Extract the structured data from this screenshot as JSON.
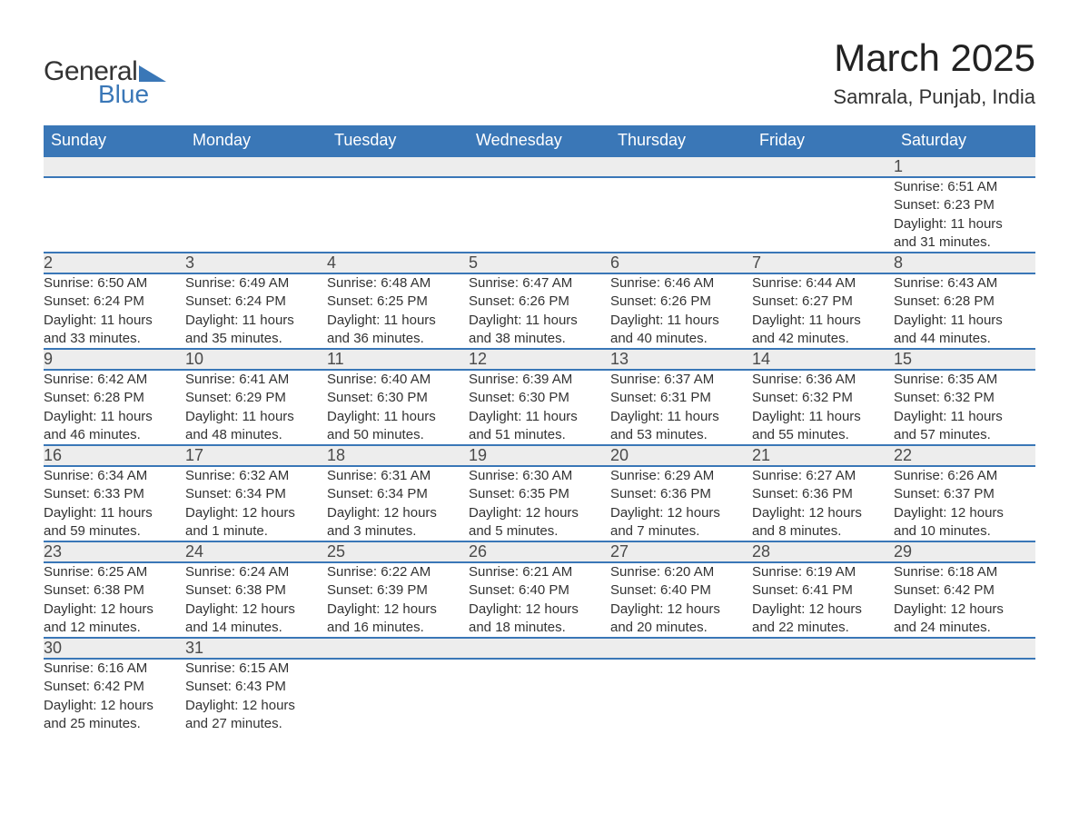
{
  "logo": {
    "general": "General",
    "blue": "Blue",
    "triangle_color": "#3a77b7"
  },
  "title": "March 2025",
  "location": "Samrala, Punjab, India",
  "colors": {
    "header_bg": "#3a77b7",
    "header_text": "#ffffff",
    "daynum_bg": "#ededed",
    "row_border": "#3a77b7",
    "body_text": "#333333",
    "page_bg": "#ffffff"
  },
  "typography": {
    "title_fontsize": 42,
    "location_fontsize": 22,
    "dayheader_fontsize": 18,
    "daynum_fontsize": 18,
    "detail_fontsize": 15,
    "font_family": "Arial"
  },
  "day_headers": [
    "Sunday",
    "Monday",
    "Tuesday",
    "Wednesday",
    "Thursday",
    "Friday",
    "Saturday"
  ],
  "weeks": [
    [
      null,
      null,
      null,
      null,
      null,
      null,
      {
        "n": "1",
        "sunrise": "Sunrise: 6:51 AM",
        "sunset": "Sunset: 6:23 PM",
        "day1": "Daylight: 11 hours",
        "day2": "and 31 minutes."
      }
    ],
    [
      {
        "n": "2",
        "sunrise": "Sunrise: 6:50 AM",
        "sunset": "Sunset: 6:24 PM",
        "day1": "Daylight: 11 hours",
        "day2": "and 33 minutes."
      },
      {
        "n": "3",
        "sunrise": "Sunrise: 6:49 AM",
        "sunset": "Sunset: 6:24 PM",
        "day1": "Daylight: 11 hours",
        "day2": "and 35 minutes."
      },
      {
        "n": "4",
        "sunrise": "Sunrise: 6:48 AM",
        "sunset": "Sunset: 6:25 PM",
        "day1": "Daylight: 11 hours",
        "day2": "and 36 minutes."
      },
      {
        "n": "5",
        "sunrise": "Sunrise: 6:47 AM",
        "sunset": "Sunset: 6:26 PM",
        "day1": "Daylight: 11 hours",
        "day2": "and 38 minutes."
      },
      {
        "n": "6",
        "sunrise": "Sunrise: 6:46 AM",
        "sunset": "Sunset: 6:26 PM",
        "day1": "Daylight: 11 hours",
        "day2": "and 40 minutes."
      },
      {
        "n": "7",
        "sunrise": "Sunrise: 6:44 AM",
        "sunset": "Sunset: 6:27 PM",
        "day1": "Daylight: 11 hours",
        "day2": "and 42 minutes."
      },
      {
        "n": "8",
        "sunrise": "Sunrise: 6:43 AM",
        "sunset": "Sunset: 6:28 PM",
        "day1": "Daylight: 11 hours",
        "day2": "and 44 minutes."
      }
    ],
    [
      {
        "n": "9",
        "sunrise": "Sunrise: 6:42 AM",
        "sunset": "Sunset: 6:28 PM",
        "day1": "Daylight: 11 hours",
        "day2": "and 46 minutes."
      },
      {
        "n": "10",
        "sunrise": "Sunrise: 6:41 AM",
        "sunset": "Sunset: 6:29 PM",
        "day1": "Daylight: 11 hours",
        "day2": "and 48 minutes."
      },
      {
        "n": "11",
        "sunrise": "Sunrise: 6:40 AM",
        "sunset": "Sunset: 6:30 PM",
        "day1": "Daylight: 11 hours",
        "day2": "and 50 minutes."
      },
      {
        "n": "12",
        "sunrise": "Sunrise: 6:39 AM",
        "sunset": "Sunset: 6:30 PM",
        "day1": "Daylight: 11 hours",
        "day2": "and 51 minutes."
      },
      {
        "n": "13",
        "sunrise": "Sunrise: 6:37 AM",
        "sunset": "Sunset: 6:31 PM",
        "day1": "Daylight: 11 hours",
        "day2": "and 53 minutes."
      },
      {
        "n": "14",
        "sunrise": "Sunrise: 6:36 AM",
        "sunset": "Sunset: 6:32 PM",
        "day1": "Daylight: 11 hours",
        "day2": "and 55 minutes."
      },
      {
        "n": "15",
        "sunrise": "Sunrise: 6:35 AM",
        "sunset": "Sunset: 6:32 PM",
        "day1": "Daylight: 11 hours",
        "day2": "and 57 minutes."
      }
    ],
    [
      {
        "n": "16",
        "sunrise": "Sunrise: 6:34 AM",
        "sunset": "Sunset: 6:33 PM",
        "day1": "Daylight: 11 hours",
        "day2": "and 59 minutes."
      },
      {
        "n": "17",
        "sunrise": "Sunrise: 6:32 AM",
        "sunset": "Sunset: 6:34 PM",
        "day1": "Daylight: 12 hours",
        "day2": "and 1 minute."
      },
      {
        "n": "18",
        "sunrise": "Sunrise: 6:31 AM",
        "sunset": "Sunset: 6:34 PM",
        "day1": "Daylight: 12 hours",
        "day2": "and 3 minutes."
      },
      {
        "n": "19",
        "sunrise": "Sunrise: 6:30 AM",
        "sunset": "Sunset: 6:35 PM",
        "day1": "Daylight: 12 hours",
        "day2": "and 5 minutes."
      },
      {
        "n": "20",
        "sunrise": "Sunrise: 6:29 AM",
        "sunset": "Sunset: 6:36 PM",
        "day1": "Daylight: 12 hours",
        "day2": "and 7 minutes."
      },
      {
        "n": "21",
        "sunrise": "Sunrise: 6:27 AM",
        "sunset": "Sunset: 6:36 PM",
        "day1": "Daylight: 12 hours",
        "day2": "and 8 minutes."
      },
      {
        "n": "22",
        "sunrise": "Sunrise: 6:26 AM",
        "sunset": "Sunset: 6:37 PM",
        "day1": "Daylight: 12 hours",
        "day2": "and 10 minutes."
      }
    ],
    [
      {
        "n": "23",
        "sunrise": "Sunrise: 6:25 AM",
        "sunset": "Sunset: 6:38 PM",
        "day1": "Daylight: 12 hours",
        "day2": "and 12 minutes."
      },
      {
        "n": "24",
        "sunrise": "Sunrise: 6:24 AM",
        "sunset": "Sunset: 6:38 PM",
        "day1": "Daylight: 12 hours",
        "day2": "and 14 minutes."
      },
      {
        "n": "25",
        "sunrise": "Sunrise: 6:22 AM",
        "sunset": "Sunset: 6:39 PM",
        "day1": "Daylight: 12 hours",
        "day2": "and 16 minutes."
      },
      {
        "n": "26",
        "sunrise": "Sunrise: 6:21 AM",
        "sunset": "Sunset: 6:40 PM",
        "day1": "Daylight: 12 hours",
        "day2": "and 18 minutes."
      },
      {
        "n": "27",
        "sunrise": "Sunrise: 6:20 AM",
        "sunset": "Sunset: 6:40 PM",
        "day1": "Daylight: 12 hours",
        "day2": "and 20 minutes."
      },
      {
        "n": "28",
        "sunrise": "Sunrise: 6:19 AM",
        "sunset": "Sunset: 6:41 PM",
        "day1": "Daylight: 12 hours",
        "day2": "and 22 minutes."
      },
      {
        "n": "29",
        "sunrise": "Sunrise: 6:18 AM",
        "sunset": "Sunset: 6:42 PM",
        "day1": "Daylight: 12 hours",
        "day2": "and 24 minutes."
      }
    ],
    [
      {
        "n": "30",
        "sunrise": "Sunrise: 6:16 AM",
        "sunset": "Sunset: 6:42 PM",
        "day1": "Daylight: 12 hours",
        "day2": "and 25 minutes."
      },
      {
        "n": "31",
        "sunrise": "Sunrise: 6:15 AM",
        "sunset": "Sunset: 6:43 PM",
        "day1": "Daylight: 12 hours",
        "day2": "and 27 minutes."
      },
      null,
      null,
      null,
      null,
      null
    ]
  ]
}
